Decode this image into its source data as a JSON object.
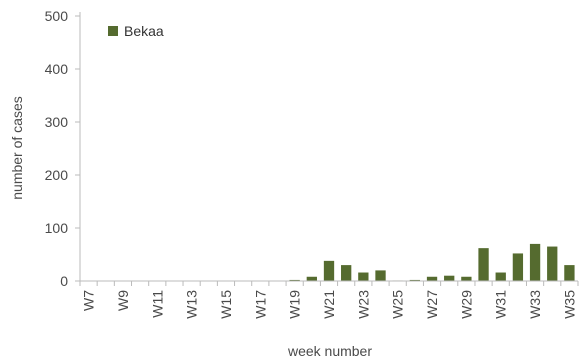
{
  "chart_data": {
    "type": "bar",
    "title": "",
    "xlabel": "week number",
    "ylabel": "number of cases",
    "ylim": [
      0,
      500
    ],
    "yticks": [
      0,
      100,
      200,
      300,
      400,
      500
    ],
    "grid": false,
    "legend_position": "top-left",
    "categories": [
      "W7",
      "W8",
      "W9",
      "W10",
      "W11",
      "W12",
      "W13",
      "W14",
      "W15",
      "W16",
      "W17",
      "W18",
      "W19",
      "W20",
      "W21",
      "W22",
      "W23",
      "W24",
      "W25",
      "W26",
      "W27",
      "W28",
      "W29",
      "W30",
      "W31",
      "W32",
      "W33",
      "W34",
      "W35"
    ],
    "xtick_labels": [
      "W7",
      "W9",
      "W11",
      "W13",
      "W15",
      "W17",
      "W19",
      "W21",
      "W23",
      "W25",
      "W27",
      "W29",
      "W31",
      "W33",
      "W35"
    ],
    "series": [
      {
        "name": "Bekaa",
        "color": "#556b2f",
        "values": [
          0,
          0,
          0,
          0,
          0,
          0,
          0,
          0,
          0,
          0,
          0,
          0,
          2,
          8,
          38,
          30,
          16,
          20,
          1,
          2,
          8,
          10,
          8,
          62,
          16,
          52,
          70,
          65,
          30
        ]
      }
    ]
  }
}
